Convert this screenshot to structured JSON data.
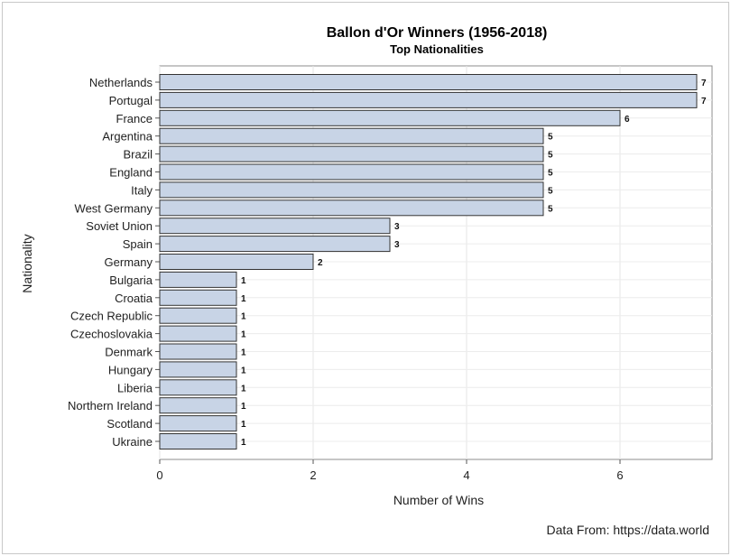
{
  "chart_data": {
    "type": "bar",
    "orientation": "horizontal",
    "title": "Ballon d'Or Winners (1956-2018)",
    "subtitle": "Top Nationalities",
    "xlabel": "Number of Wins",
    "ylabel": "Nationality",
    "footnote": "Data From: https://data.world",
    "xlim": [
      0,
      7.2
    ],
    "xticks": [
      0,
      2,
      4,
      6
    ],
    "grid": true,
    "categories": [
      "Netherlands",
      "Portugal",
      "France",
      "Argentina",
      "Brazil",
      "England",
      "Italy",
      "West Germany",
      "Soviet Union",
      "Spain",
      "Germany",
      "Bulgaria",
      "Croatia",
      "Czech Republic",
      "Czechoslovakia",
      "Denmark",
      "Hungary",
      "Liberia",
      "Northern Ireland",
      "Scotland",
      "Ukraine"
    ],
    "values": [
      7,
      7,
      6,
      5,
      5,
      5,
      5,
      5,
      3,
      3,
      2,
      1,
      1,
      1,
      1,
      1,
      1,
      1,
      1,
      1,
      1
    ],
    "bar_color": "#c8d4e6",
    "bar_edge_color": "#333333"
  }
}
